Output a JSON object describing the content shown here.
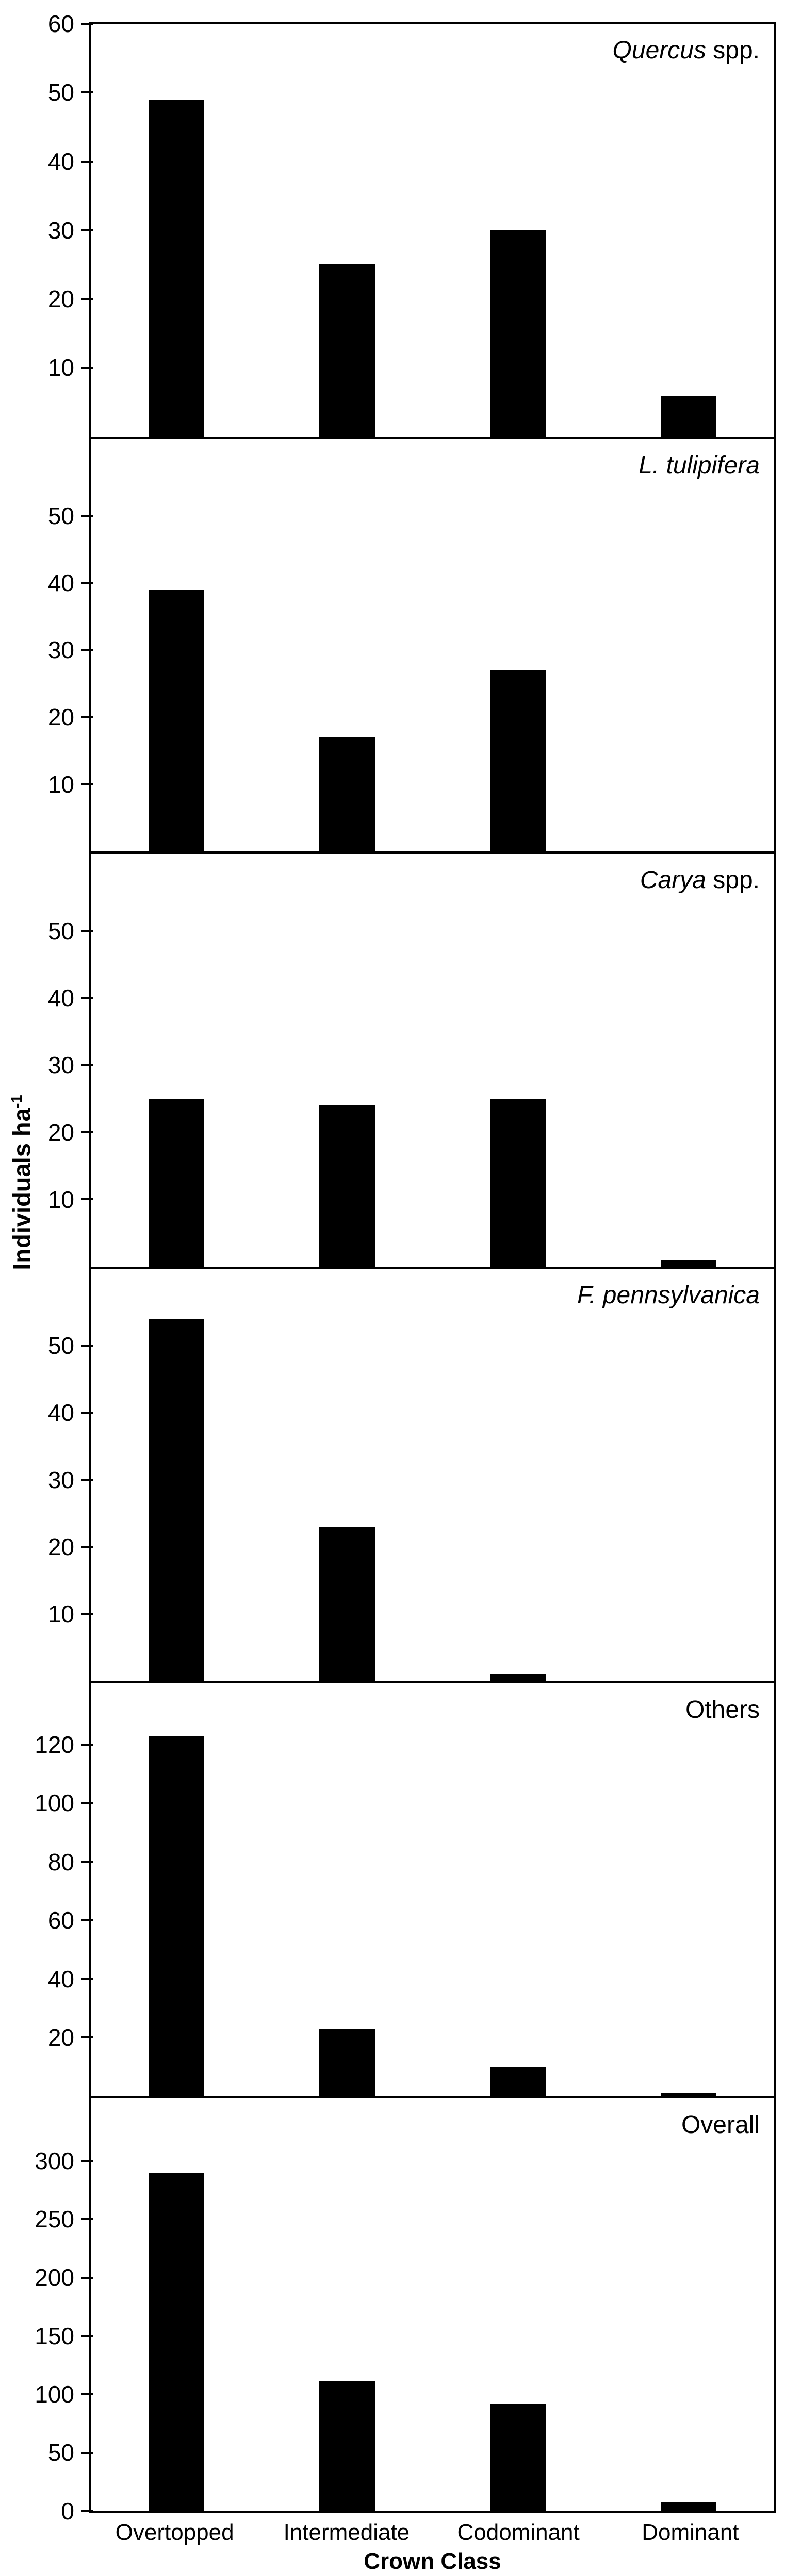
{
  "chart_data": {
    "type": "bar",
    "orientation": "vertical",
    "bar_color": "#000000",
    "axis_color": "#000000",
    "background_color": "#ffffff",
    "grid": false,
    "legend": false,
    "xlabel": "Crown Class",
    "ylabel": "Individuals ha⁻¹",
    "ylabel_main": "Individuals ha",
    "ylabel_sup": "-1",
    "categories": [
      "Overtopped",
      "Intermediate",
      "Codominant",
      "Dominant"
    ],
    "panels": [
      {
        "title_italic": "Quercus",
        "title_roman": " spp.",
        "values": [
          49,
          25,
          30,
          6
        ],
        "yticks": [
          10,
          20,
          30,
          40,
          50,
          60
        ],
        "ymax": 60
      },
      {
        "title_italic": "L. tulipifera",
        "title_roman": "",
        "values": [
          39,
          17,
          27,
          0
        ],
        "yticks": [
          10,
          20,
          30,
          40,
          50
        ],
        "ymax": 61.5
      },
      {
        "title_italic": "Carya",
        "title_roman": " spp.",
        "values": [
          25,
          24,
          25,
          1
        ],
        "yticks": [
          10,
          20,
          30,
          40,
          50
        ],
        "ymax": 61.5
      },
      {
        "title_italic": "F. pennsylvanica",
        "title_roman": "",
        "values": [
          54,
          23,
          1,
          0
        ],
        "yticks": [
          10,
          20,
          30,
          40,
          50
        ],
        "ymax": 61.5
      },
      {
        "title_italic": "",
        "title_roman": "Others",
        "values": [
          123,
          23,
          10,
          1
        ],
        "yticks": [
          20,
          40,
          60,
          80,
          100,
          120
        ],
        "ymax": 141
      },
      {
        "title_italic": "",
        "title_roman": "Overall",
        "values": [
          290,
          111,
          92,
          8
        ],
        "yticks": [
          0,
          50,
          100,
          150,
          200,
          250,
          300
        ],
        "ymax": 354
      }
    ]
  }
}
